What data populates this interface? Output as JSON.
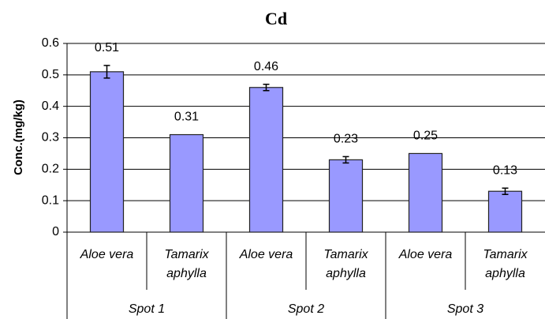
{
  "chart_data": {
    "type": "bar",
    "title": "Cd",
    "ylabel": "Conc.(mg/kg)",
    "categories": [
      "Aloe vera",
      "Tamarix aphylla",
      "Aloe vera",
      "Tamarix aphylla",
      "Aloe vera",
      "Tamarix aphylla"
    ],
    "groups": [
      "Spot 1",
      "Spot 2",
      "Spot 3"
    ],
    "values": [
      0.51,
      0.31,
      0.46,
      0.23,
      0.25,
      0.13
    ],
    "errors": [
      0.02,
      0,
      0.01,
      0.01,
      0,
      0.01
    ],
    "color": "#9999ff",
    "ylim": [
      0,
      0.6
    ],
    "yticks": [
      0,
      0.1,
      0.2,
      0.3,
      0.4,
      0.5,
      0.6
    ],
    "grid": true
  }
}
